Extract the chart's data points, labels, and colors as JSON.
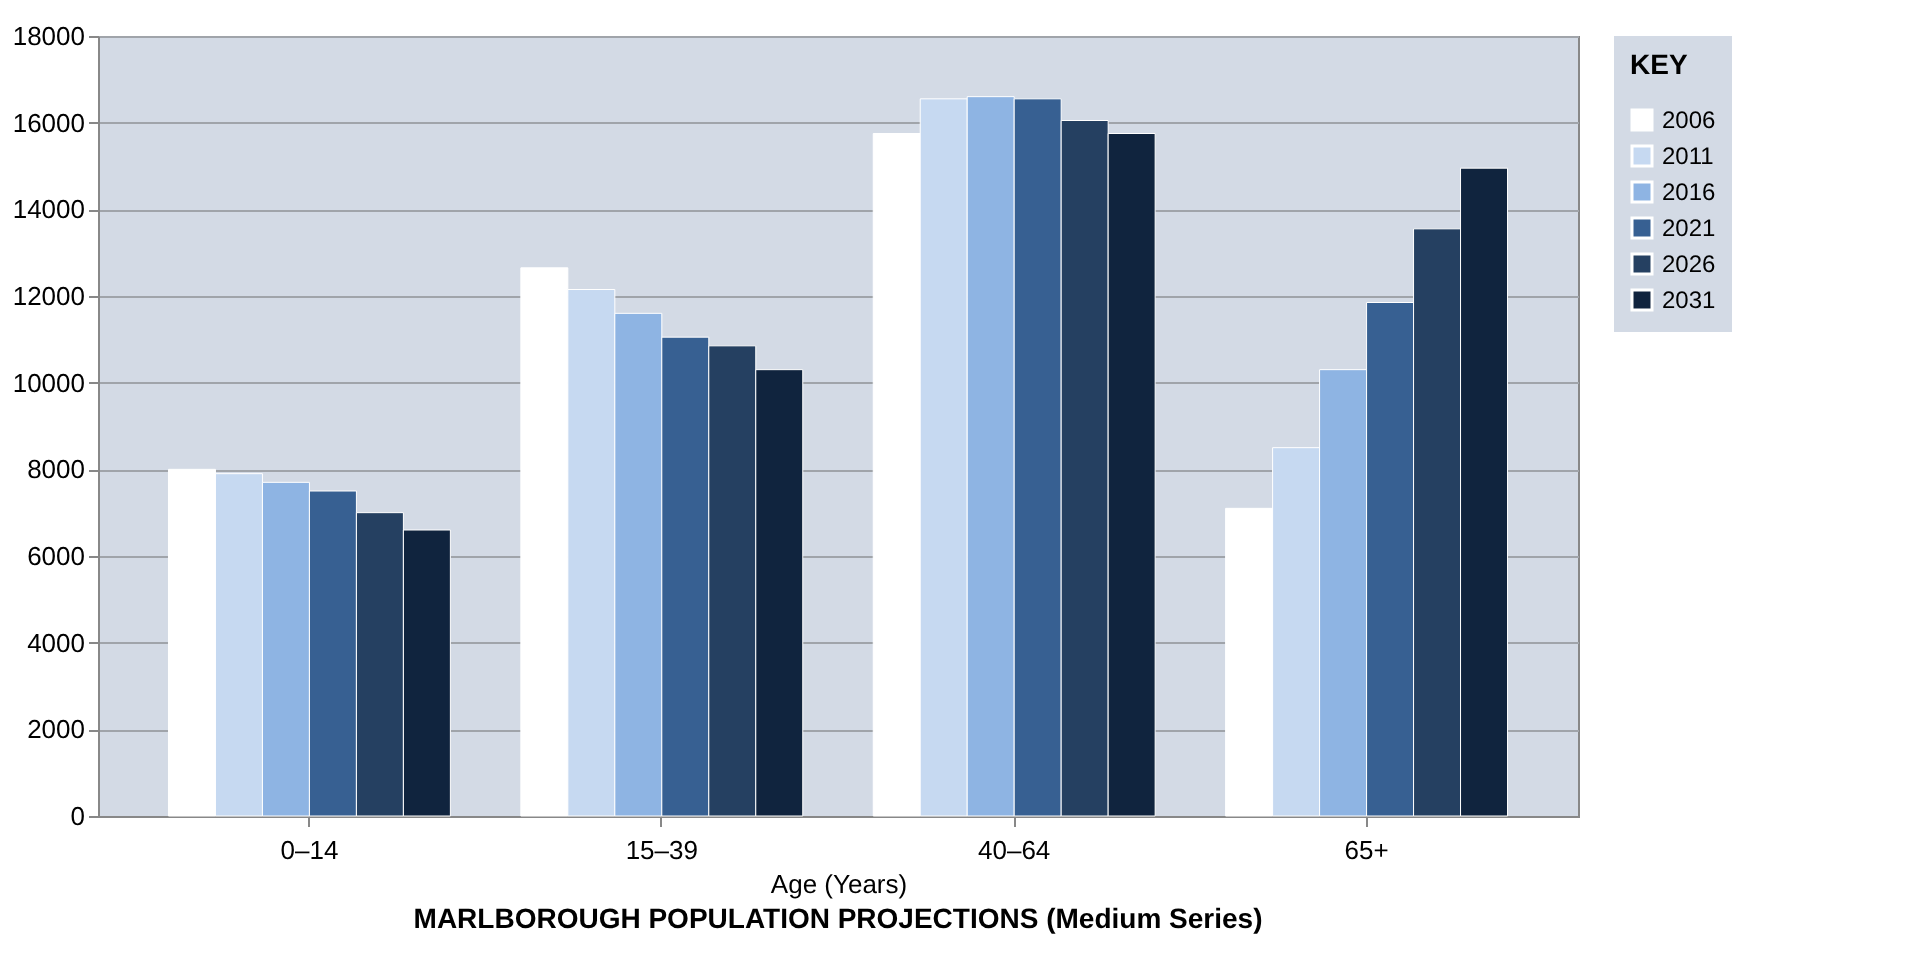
{
  "chart_data": {
    "type": "bar",
    "title": "MARLBOROUGH POPULATION PROJECTIONS (Medium Series)",
    "xlabel": "Age (Years)",
    "legend_title": "KEY",
    "categories": [
      "0–14",
      "15–39",
      "40–64",
      "65+"
    ],
    "series": [
      {
        "name": "2006",
        "color": "#ffffff",
        "values": [
          8000,
          12650,
          15750,
          7100
        ]
      },
      {
        "name": "2011",
        "color": "#c6d9f1",
        "values": [
          7900,
          12150,
          16550,
          8500
        ]
      },
      {
        "name": "2016",
        "color": "#8eb4e3",
        "values": [
          7700,
          11600,
          16600,
          10300
        ]
      },
      {
        "name": "2021",
        "color": "#376092",
        "values": [
          7500,
          11050,
          16550,
          11850
        ]
      },
      {
        "name": "2026",
        "color": "#254061",
        "values": [
          7000,
          10850,
          16050,
          13550
        ]
      },
      {
        "name": "2031",
        "color": "#10243e",
        "values": [
          6600,
          10300,
          15750,
          14950
        ]
      }
    ],
    "ylim": [
      0,
      18000
    ],
    "yticks": [
      0,
      2000,
      4000,
      6000,
      8000,
      10000,
      12000,
      14000,
      16000,
      18000
    ],
    "grid": "y",
    "legend": "right"
  }
}
